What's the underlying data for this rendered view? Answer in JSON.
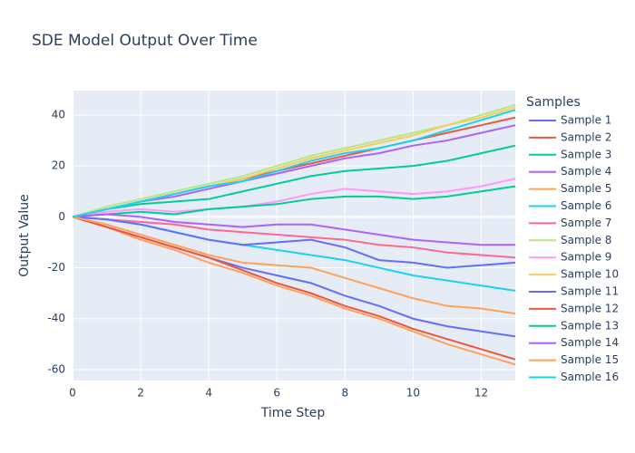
{
  "chart_data": {
    "type": "line",
    "title": "SDE Model Output Over Time",
    "x_label": "Time Step",
    "y_label": "Output Value",
    "legend_title": "Samples",
    "x": [
      0,
      1,
      2,
      3,
      4,
      5,
      6,
      7,
      8,
      9,
      10,
      11,
      12,
      13
    ],
    "xlim": [
      0,
      13
    ],
    "xticks": [
      0,
      2,
      4,
      6,
      8,
      10,
      12
    ],
    "ylim": [
      -64.3,
      49.6
    ],
    "yticks": [
      -60,
      -40,
      -20,
      0,
      20,
      40
    ],
    "grid": true,
    "legend": "right",
    "series": [
      {
        "name": "Sample 1",
        "color": "#636efa",
        "values": [
          0,
          -4,
          -8,
          -12,
          -16,
          -20,
          -23,
          -26,
          -31,
          -35,
          -40,
          -43,
          -45,
          -47
        ]
      },
      {
        "name": "Sample 2",
        "color": "#EF553B",
        "values": [
          0,
          3,
          6,
          9,
          12,
          15,
          18,
          21,
          24,
          27,
          30,
          33,
          36,
          39
        ]
      },
      {
        "name": "Sample 3",
        "color": "#00cc96",
        "values": [
          0,
          3,
          5,
          6,
          7,
          10,
          13,
          16,
          18,
          19,
          20,
          22,
          25,
          28
        ]
      },
      {
        "name": "Sample 4",
        "color": "#ab63fa",
        "values": [
          0,
          3,
          6,
          8,
          11,
          14,
          17,
          20,
          23,
          25,
          28,
          30,
          33,
          36
        ]
      },
      {
        "name": "Sample 5",
        "color": "#FFA15A",
        "values": [
          0,
          -4,
          -9,
          -13,
          -18,
          -22,
          -27,
          -31,
          -36,
          -40,
          -45,
          -50,
          -54,
          -58
        ]
      },
      {
        "name": "Sample 6",
        "color": "#19d3f3",
        "values": [
          0,
          -1,
          -3,
          -6,
          -9,
          -11,
          -13,
          -15,
          -17,
          -20,
          -23,
          -25,
          -27,
          -29
        ]
      },
      {
        "name": "Sample 7",
        "color": "#FF6692",
        "values": [
          0,
          -1,
          -2,
          -3,
          -5,
          -6,
          -7,
          -8,
          -9,
          -11,
          -12,
          -14,
          -15,
          -16
        ]
      },
      {
        "name": "Sample 8",
        "color": "#B6E880",
        "values": [
          0,
          4,
          7,
          10,
          13,
          16,
          20,
          24,
          27,
          30,
          33,
          36,
          40,
          44
        ]
      },
      {
        "name": "Sample 9",
        "color": "#FF97FF",
        "values": [
          0,
          2,
          3,
          2,
          3,
          4,
          6,
          9,
          11,
          10,
          9,
          10,
          12,
          15
        ]
      },
      {
        "name": "Sample 10",
        "color": "#FECB52",
        "values": [
          0,
          3,
          6,
          9,
          12,
          15,
          19,
          23,
          26,
          29,
          32,
          36,
          39,
          43
        ]
      },
      {
        "name": "Sample 11",
        "color": "#636efa",
        "values": [
          0,
          -1,
          -3,
          -6,
          -9,
          -11,
          -10,
          -9,
          -12,
          -17,
          -18,
          -20,
          -19,
          -18
        ]
      },
      {
        "name": "Sample 12",
        "color": "#EF553B",
        "values": [
          0,
          -4,
          -8,
          -12,
          -16,
          -21,
          -26,
          -30,
          -35,
          -39,
          -44,
          -48,
          -52,
          -56
        ]
      },
      {
        "name": "Sample 13",
        "color": "#00cc96",
        "values": [
          0,
          1,
          2,
          1,
          3,
          4,
          5,
          7,
          8,
          8,
          7,
          8,
          10,
          12
        ]
      },
      {
        "name": "Sample 14",
        "color": "#ab63fa",
        "values": [
          0,
          1,
          0,
          -2,
          -3,
          -4,
          -3,
          -3,
          -5,
          -7,
          -9,
          -10,
          -11,
          -11
        ]
      },
      {
        "name": "Sample 15",
        "color": "#FFA15A",
        "values": [
          0,
          -3,
          -7,
          -11,
          -15,
          -18,
          -19,
          -20,
          -24,
          -28,
          -32,
          -35,
          -36,
          -38
        ]
      },
      {
        "name": "Sample 16",
        "color": "#19d3f3",
        "values": [
          0,
          3,
          6,
          9,
          12,
          14,
          18,
          22,
          25,
          27,
          30,
          34,
          38,
          42
        ]
      }
    ]
  }
}
